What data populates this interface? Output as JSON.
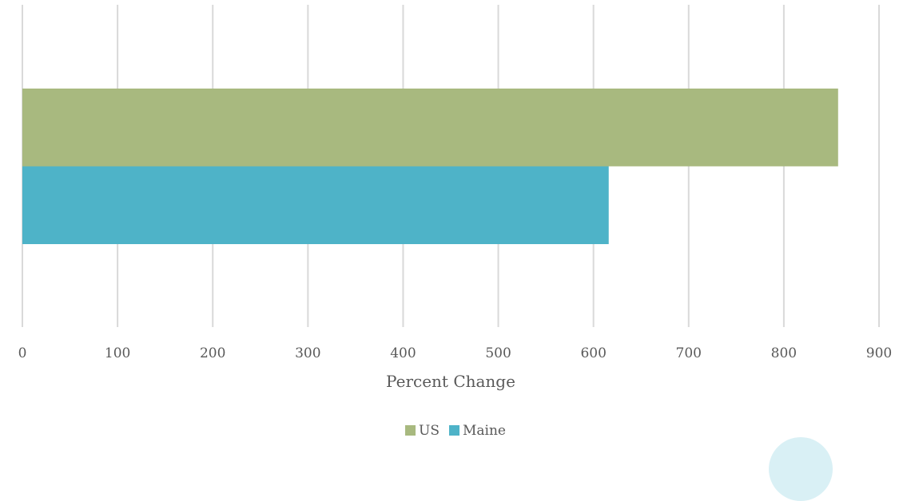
{
  "chart_data": {
    "type": "bar",
    "orientation": "horizontal",
    "title": "",
    "xlabel": "Percent Change",
    "ylabel": "",
    "xlim": [
      0,
      900
    ],
    "x_ticks": [
      0,
      100,
      200,
      300,
      400,
      500,
      600,
      700,
      800,
      900
    ],
    "x_tick_labels": [
      "0",
      "100",
      "200",
      "300",
      "400",
      "500",
      "600",
      "700",
      "800",
      "900"
    ],
    "categories": [
      ""
    ],
    "series": [
      {
        "name": "US",
        "values": [
          857
        ],
        "color": "#a8b97f"
      },
      {
        "name": "Maine",
        "values": [
          616
        ],
        "color": "#4eb3c8"
      }
    ],
    "grid": "vertical",
    "legend_position": "bottom"
  }
}
